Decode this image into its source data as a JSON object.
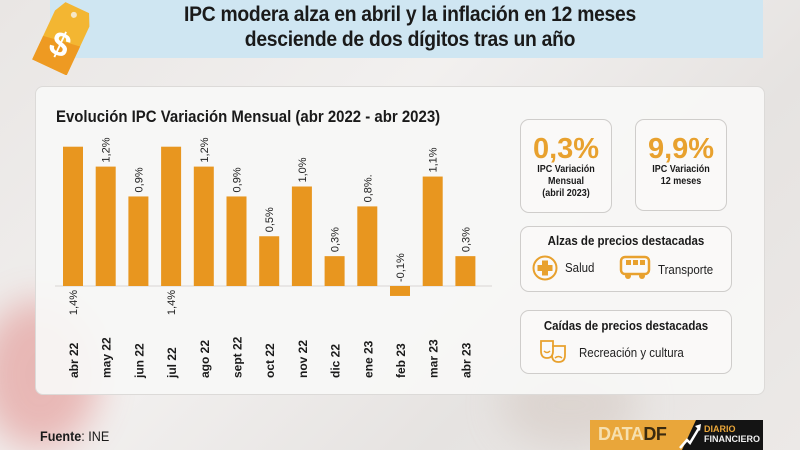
{
  "header": {
    "title_line1": "IPC modera alza en abril y la inflación en 12 meses",
    "title_line2": "desciende de dos dígitos tras un año",
    "icon": "price-tag-dollar-icon"
  },
  "chart_data": {
    "type": "bar",
    "title": "Evolución IPC Variación Mensual (abr 2022 - abr 2023)",
    "xlabel": "",
    "ylabel": "",
    "categories": [
      "abr 22",
      "may 22",
      "jun 22",
      "jul 22",
      "ago 22",
      "sept 22",
      "oct 22",
      "nov 22",
      "dic 22",
      "ene 23",
      "feb 23",
      "mar 23",
      "abr 23"
    ],
    "values": [
      1.4,
      1.2,
      0.9,
      1.4,
      1.2,
      0.9,
      0.5,
      1.0,
      0.3,
      0.8,
      -0.1,
      1.1,
      0.3
    ],
    "labels": [
      "1,4%",
      "1,2%",
      "0,9%",
      "1,4%",
      "1,2%",
      "0,9%",
      "0,5%",
      "1,0%",
      "0,3%",
      "0,8%.",
      "-0,1%",
      "1,1%",
      "0,3%"
    ],
    "label_inside_bottom": [
      true,
      false,
      false,
      true,
      false,
      false,
      false,
      false,
      false,
      false,
      false,
      false,
      false
    ],
    "ylim": [
      -0.1,
      1.4
    ],
    "grid": false,
    "legend": "none",
    "bar_color": "#e8961f",
    "unit": "%"
  },
  "kpis": [
    {
      "value": "0,3%",
      "label_lines": [
        "IPC Variación",
        "Mensual",
        "(abril 2023)"
      ]
    },
    {
      "value": "9,9%",
      "label_lines": [
        "IPC Variación",
        "12 meses"
      ]
    }
  ],
  "alzas": {
    "title": "Alzas de precios destacadas",
    "items": [
      {
        "icon": "health-cross-icon",
        "label": "Salud"
      },
      {
        "icon": "bus-icon",
        "label": "Transporte"
      }
    ]
  },
  "caidas": {
    "title": "Caídas de precios destacadas",
    "items": [
      {
        "icon": "theater-masks-icon",
        "label": "Recreación y cultura"
      }
    ]
  },
  "footer": {
    "source_label": "Fuente",
    "source_value": ": INE",
    "logo_data": "DATA",
    "logo_df": "DF",
    "logo_line1": "DIARIO",
    "logo_line2": "FINANCIERO"
  },
  "colors": {
    "accent": "#e8961f",
    "kpi": "#e8a12e",
    "header_band": "#cfe6f2"
  }
}
